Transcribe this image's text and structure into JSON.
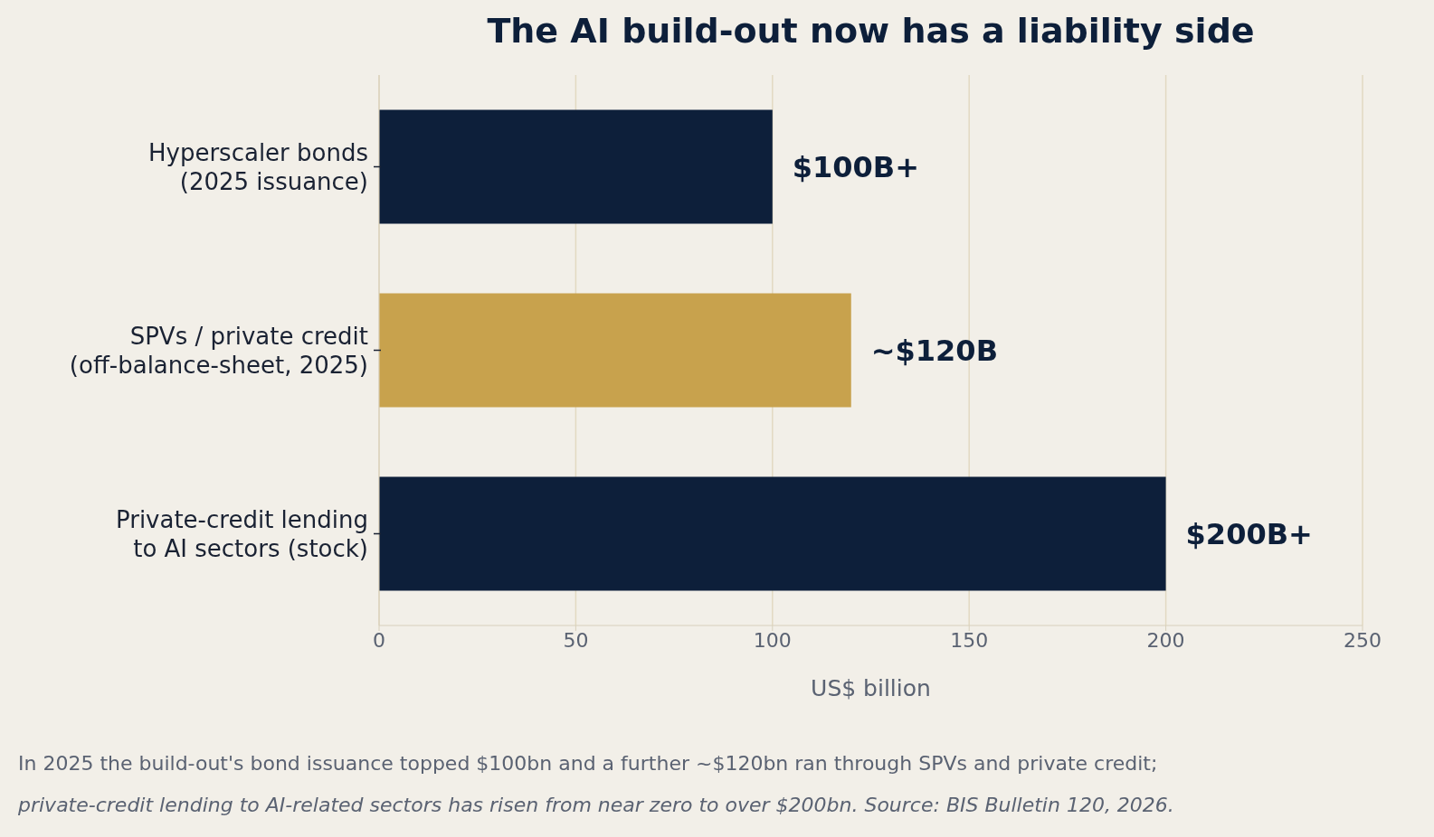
{
  "chart_data": {
    "type": "bar",
    "orientation": "horizontal",
    "title": "The AI build-out now has a liability side",
    "categories": [
      "Hyperscaler bonds\n(2025 issuance)",
      "SPVs / private credit\n(off-balance-sheet, 2025)",
      "Private-credit lending\nto AI sectors (stock)"
    ],
    "values": [
      100,
      120,
      200
    ],
    "colors": [
      "#0d1f3a",
      "#c8a24d",
      "#0d1f3a"
    ],
    "value_labels": [
      "$100B+",
      "~$120B",
      "$200B+"
    ],
    "xlabel": "US$ billion",
    "xlim": [
      0,
      250
    ],
    "xticks": [
      0,
      50,
      100,
      150,
      200,
      250
    ],
    "grid": "x",
    "annotations": [
      "In 2025 the build-out's bond issuance topped $100bn and a further ~$120bn ran through SPVs and private credit;",
      "private-credit lending to AI-related sectors has risen from near zero to over $200bn.   Source: BIS Bulletin 120, 2026."
    ]
  }
}
